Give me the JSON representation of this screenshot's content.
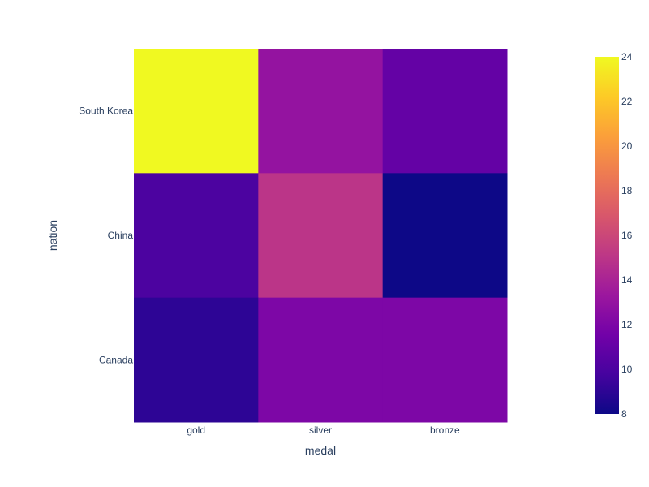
{
  "chart_data": {
    "type": "heatmap",
    "title": "",
    "xlabel": "medal",
    "ylabel": "nation",
    "x": [
      "gold",
      "silver",
      "bronze"
    ],
    "y": [
      "South Korea",
      "China",
      "Canada"
    ],
    "z": [
      [
        24,
        13,
        11
      ],
      [
        10,
        15,
        8
      ],
      [
        9,
        12,
        12
      ]
    ],
    "colorscale": "plasma",
    "colorbar": {
      "min": 8,
      "max": 24,
      "ticks": [
        8,
        10,
        12,
        14,
        16,
        18,
        20,
        22,
        24
      ]
    },
    "grid": false
  }
}
